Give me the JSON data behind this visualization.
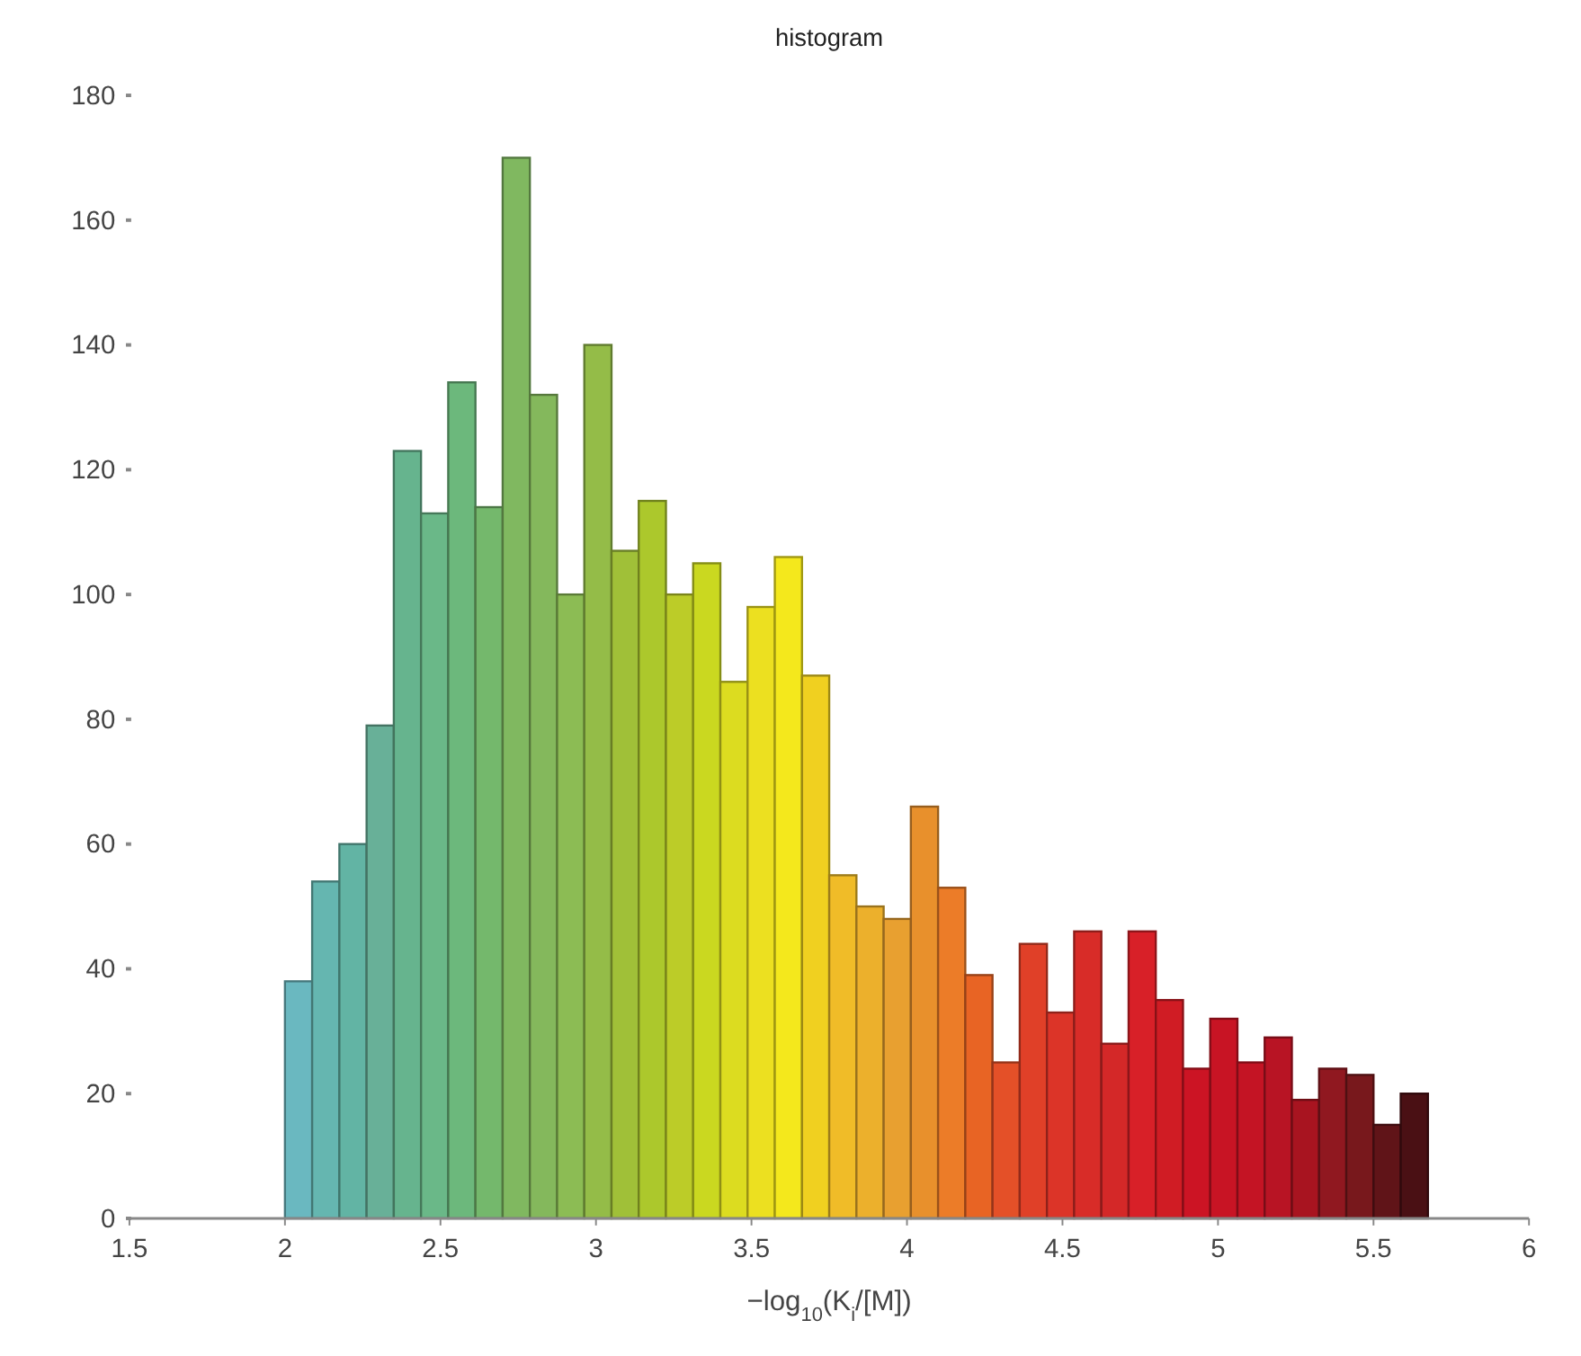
{
  "chart_data": {
    "type": "histogram",
    "title": "histogram",
    "xlabel": "−log$_{10}$(K$_{i}$/[M])",
    "bins": [
      2,
      2.0875,
      2.175,
      2.2625,
      2.35,
      2.4375,
      2.525,
      2.6125,
      2.7,
      2.7875,
      2.875,
      2.9625,
      3.05,
      3.1375,
      3.225,
      3.3125,
      3.4,
      3.4875,
      3.575,
      3.6625,
      3.75,
      3.8375,
      3.925,
      4.0125,
      4.1,
      4.1875,
      4.275,
      4.3625,
      4.45,
      4.5375,
      4.625,
      4.7125,
      4.8,
      4.8875,
      4.975,
      5.0625,
      5.15,
      5.2375,
      5.325,
      5.4125,
      5.5,
      5.5875,
      5.675
    ],
    "values": [
      38,
      54,
      60,
      79,
      123,
      113,
      134,
      114,
      170,
      132,
      100,
      140,
      107,
      115,
      100,
      105,
      86,
      98,
      106,
      87,
      55,
      50,
      48,
      66,
      53,
      39,
      25,
      44,
      33,
      46,
      28,
      46,
      35,
      24,
      32,
      25,
      29,
      19,
      24,
      23,
      15,
      20
    ],
    "colors": [
      "#6ab8c0",
      "#65b6b0",
      "#62b4a4",
      "#68b098",
      "#66b48e",
      "#6ab888",
      "#6cb87c",
      "#74b86c",
      "#80b860",
      "#84b85c",
      "#8cbc54",
      "#94bc48",
      "#a0c038",
      "#acc82c",
      "#bccc28",
      "#cad820",
      "#dcdc20",
      "#ece020",
      "#f4e81c",
      "#f0d020",
      "#f0bc28",
      "#ecb02c",
      "#e8a030",
      "#e8902c",
      "#ec7c28",
      "#e86424",
      "#e45028",
      "#e04028",
      "#dc3428",
      "#d82c28",
      "#d42828",
      "#d82028",
      "#d01c24",
      "#cc1424",
      "#c81424",
      "#c41424",
      "#b81424",
      "#a81420",
      "#901820",
      "#78181c",
      "#601418",
      "#4a1014"
    ],
    "xlim": [
      1.5,
      6
    ],
    "xticks": [
      1.5,
      2,
      2.5,
      3,
      3.5,
      4,
      4.5,
      5,
      5.5,
      6
    ],
    "ylim": [
      0,
      180
    ],
    "yticks": [
      0,
      20,
      40,
      60,
      80,
      100,
      120,
      140,
      160,
      180
    ],
    "grid": false
  }
}
